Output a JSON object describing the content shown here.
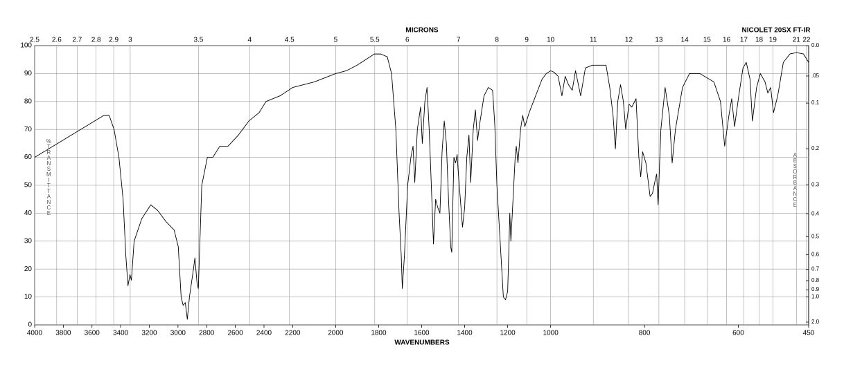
{
  "chart_data": {
    "type": "line",
    "top_axis_label": "MICRONS",
    "instrument": "NICOLET 20SX FT-IR",
    "xlabel": "WAVENUMBERS",
    "ylabel": "%TRANSMITTANCE",
    "y2label": "ABSORBANCE",
    "color": "#000000",
    "grid": true,
    "xlim": [
      4000,
      450
    ],
    "x_breaks": [
      4000,
      2200,
      1000,
      450
    ],
    "xticks": [
      4000,
      3800,
      3600,
      3400,
      3200,
      3000,
      2800,
      2600,
      2400,
      2200,
      2000,
      1800,
      1600,
      1400,
      1200,
      1000,
      800,
      600,
      450
    ],
    "x2ticks": [
      2.5,
      2.6,
      2.7,
      2.8,
      2.9,
      3,
      3.5,
      4,
      4.5,
      5,
      5.5,
      6,
      7,
      8,
      9,
      10,
      11,
      12,
      13,
      14,
      15,
      16,
      17,
      18,
      19,
      21,
      22
    ],
    "ylim": [
      0,
      100
    ],
    "yticks": [
      0,
      10,
      20,
      30,
      40,
      50,
      60,
      70,
      80,
      90,
      100
    ],
    "y2ticks": [
      {
        "value": 0,
        "label": "0.0"
      },
      {
        "value": 0.05,
        "label": ".05"
      },
      0.1,
      0.2,
      0.3,
      0.4,
      0.5,
      0.6,
      0.7,
      0.8,
      0.9,
      {
        "value": 1,
        "label": "1.0"
      },
      {
        "value": 2,
        "label": "2.0"
      }
    ],
    "x": [
      4000,
      3807,
      3614,
      3518,
      3480,
      3446,
      3412,
      3383,
      3364,
      3349,
      3335,
      3325,
      3306,
      3253,
      3190,
      3142,
      3084,
      3027,
      2998,
      2978,
      2964,
      2949,
      2935,
      2920,
      2892,
      2882,
      2867,
      2858,
      2834,
      2795,
      2757,
      2708,
      2651,
      2578,
      2506,
      2434,
      2386,
      2289,
      2200,
      2100,
      2000,
      1950,
      1900,
      1860,
      1820,
      1790,
      1760,
      1740,
      1720,
      1705,
      1695,
      1690,
      1680,
      1665,
      1650,
      1640,
      1632,
      1620,
      1605,
      1597,
      1585,
      1575,
      1565,
      1555,
      1545,
      1535,
      1525,
      1515,
      1505,
      1495,
      1485,
      1475,
      1465,
      1460,
      1450,
      1442,
      1435,
      1430,
      1420,
      1410,
      1400,
      1390,
      1380,
      1372,
      1360,
      1350,
      1340,
      1330,
      1310,
      1290,
      1270,
      1260,
      1250,
      1235,
      1220,
      1210,
      1200,
      1195,
      1190,
      1185,
      1175,
      1165,
      1160,
      1152,
      1140,
      1130,
      1120,
      1100,
      1080,
      1060,
      1040,
      1020,
      1000,
      993,
      984,
      976,
      969,
      962,
      954,
      947,
      936,
      926,
      911,
      882,
      874,
      867,
      862,
      857,
      851,
      845,
      840,
      833,
      827,
      818,
      812,
      808,
      804,
      797,
      788,
      783,
      777,
      774,
      771,
      765,
      756,
      747,
      741,
      734,
      719,
      704,
      682,
      652,
      638,
      629,
      620,
      614,
      608,
      599,
      590,
      583,
      575,
      570,
      561,
      553,
      543,
      537,
      531,
      525,
      516,
      504,
      490,
      476,
      461,
      450
    ],
    "values": [
      60,
      66,
      72,
      75,
      75,
      70,
      60,
      45,
      25,
      14,
      18,
      16,
      30,
      38,
      43,
      41,
      37,
      34,
      28,
      10,
      7,
      8,
      2,
      10,
      20,
      24,
      15,
      13,
      50,
      60,
      60,
      64,
      64,
      68,
      73,
      76,
      80,
      82,
      85,
      87,
      90,
      91,
      93,
      95,
      97,
      97,
      96,
      90,
      70,
      40,
      25,
      13,
      25,
      50,
      60,
      64,
      51,
      70,
      78,
      65,
      80,
      85,
      70,
      50,
      29,
      45,
      42,
      40,
      62,
      73,
      65,
      45,
      28,
      26,
      60,
      58,
      61,
      55,
      45,
      35,
      42,
      60,
      68,
      51,
      70,
      77,
      66,
      72,
      82,
      85,
      84,
      72,
      50,
      30,
      10,
      9,
      12,
      25,
      40,
      30,
      45,
      60,
      64,
      58,
      70,
      75,
      71,
      76,
      80,
      84,
      88,
      90,
      91,
      90.5,
      89,
      82,
      89,
      86,
      84,
      91,
      82,
      92,
      93,
      93,
      85,
      75,
      63,
      80,
      86,
      80,
      70,
      79,
      78,
      81,
      60,
      53,
      62,
      58,
      46,
      47,
      52,
      54,
      43,
      70,
      85,
      75,
      58,
      70,
      85,
      90,
      90,
      87,
      80,
      64,
      75,
      81,
      71,
      82,
      92,
      94,
      88,
      73,
      85,
      90,
      87,
      83,
      85,
      76,
      82,
      94,
      97,
      97.5,
      97,
      94
    ]
  }
}
